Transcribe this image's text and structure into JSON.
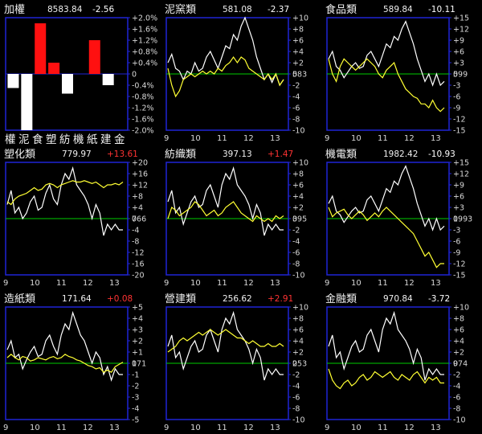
{
  "colors": {
    "background": "#000000",
    "frame": "#1f24d6",
    "axis_text": "#d8d8d8",
    "title_text": "#f0f0f0",
    "index_line": "#ffffff",
    "sector_line": "#ffff33",
    "reference_line": "#00cc00",
    "bar_up": "#ff1010",
    "bar_down": "#ffffff",
    "change_up": "#ff3333",
    "change_down": "#ffffff"
  },
  "chart_data": [
    {
      "type": "bar",
      "name": "加權",
      "title": "加權",
      "value": "8583.84",
      "change": "-2.56",
      "categories": [
        "權",
        "泥",
        "食",
        "塑",
        "紡",
        "機",
        "紙",
        "建",
        "金"
      ],
      "values": [
        -0.5,
        -2.0,
        1.8,
        0.4,
        -0.7,
        0.0,
        1.2,
        -0.4,
        0.0
      ],
      "ylim": [
        -2.0,
        2.0
      ],
      "y_ticks": [
        "+2.0%",
        "+1.6%",
        "+1.2%",
        "+0.8%",
        "+0.4%",
        "0",
        "-0.4%",
        "-0.8%",
        "-1.2%",
        "-1.6%",
        "-2.0%"
      ]
    },
    {
      "type": "line",
      "title": "泥窯類",
      "value": "581.08",
      "change": "-2.37",
      "ref_label": "583",
      "ylim": [
        -10,
        10
      ],
      "y_ticks": [
        "+10",
        "+8",
        "+6",
        "+4",
        "+2",
        "0",
        "-2",
        "-4",
        "-6",
        "-8",
        "-10"
      ],
      "x_ticks": [
        "9",
        "10",
        "11",
        "12",
        "13"
      ],
      "series": [
        {
          "values": [
            2.0,
            3.5,
            1.0,
            0.5,
            -1.0,
            0.5,
            0.0,
            2.0,
            0.5,
            1.0,
            3.0,
            4.0,
            2.5,
            1.0,
            3.0,
            5.0,
            4.5,
            7.0,
            6.0,
            8.5,
            10.0,
            8.0,
            6.0,
            3.0,
            1.0,
            -1.0,
            0.0,
            -1.5,
            0.0,
            -2.0,
            -1.0
          ]
        },
        {
          "values": [
            1.0,
            -2.0,
            -4.0,
            -3.0,
            -1.0,
            -0.5,
            0.0,
            -0.5,
            0.0,
            0.5,
            0.0,
            0.5,
            0.0,
            1.0,
            0.5,
            1.5,
            2.0,
            3.0,
            2.0,
            3.0,
            2.5,
            1.0,
            0.5,
            0.0,
            -0.5,
            -1.0,
            0.0,
            -1.0,
            0.0,
            -2.0,
            -1.0
          ]
        }
      ]
    },
    {
      "type": "line",
      "title": "食品類",
      "value": "589.84",
      "change": "-10.11",
      "ref_label": "599",
      "ylim": [
        -15,
        15
      ],
      "y_ticks": [
        "+15",
        "+12",
        "+9",
        "+6",
        "+3",
        "0",
        "-3",
        "-6",
        "-9",
        "-12",
        "-15"
      ],
      "x_ticks": [
        "9",
        "10",
        "11",
        "12",
        "13"
      ],
      "series": [
        {
          "values": [
            4.0,
            6.0,
            2.0,
            1.0,
            -1.0,
            0.5,
            2.0,
            3.0,
            1.5,
            2.0,
            5.0,
            6.0,
            4.0,
            2.0,
            5.0,
            8.0,
            7.0,
            10.0,
            9.0,
            12.0,
            14.0,
            11.0,
            8.0,
            4.0,
            1.0,
            -2.0,
            0.0,
            -3.0,
            0.0,
            -3.0,
            -2.0
          ]
        },
        {
          "values": [
            4.0,
            0.0,
            -2.0,
            2.0,
            4.0,
            3.0,
            2.0,
            1.0,
            2.0,
            3.0,
            4.0,
            3.0,
            2.0,
            0.0,
            -1.0,
            1.0,
            2.0,
            3.0,
            0.0,
            -2.0,
            -4.0,
            -5.0,
            -6.0,
            -6.5,
            -8.0,
            -8.0,
            -9.0,
            -7.0,
            -9.0,
            -10.0,
            -9.0
          ]
        }
      ]
    },
    {
      "type": "line",
      "title": "塑化類",
      "value": "779.97",
      "change": "+13.61",
      "ref_label": "766",
      "ylim": [
        -20,
        20
      ],
      "y_ticks": [
        "+20",
        "+16",
        "+12",
        "+8",
        "+4",
        "0",
        "-4",
        "-8",
        "-12",
        "-16",
        "-20"
      ],
      "x_ticks": [
        "9",
        "10",
        "11",
        "12",
        "13"
      ],
      "series": [
        {
          "values": [
            5.0,
            10.0,
            2.0,
            4.0,
            0.0,
            2.0,
            6.0,
            8.0,
            3.0,
            4.0,
            9.0,
            12.0,
            7.0,
            5.0,
            12.0,
            16.0,
            14.0,
            18.0,
            12.0,
            10.0,
            8.0,
            5.0,
            0.0,
            5.0,
            2.0,
            -6.0,
            -2.0,
            -4.0,
            -2.0,
            -4.0,
            -4.0
          ]
        },
        {
          "values": [
            6.0,
            5.0,
            7.0,
            8.0,
            8.5,
            9.0,
            10.0,
            11.0,
            10.0,
            10.5,
            12.0,
            12.5,
            12.0,
            11.0,
            12.0,
            12.5,
            13.0,
            13.5,
            13.0,
            13.0,
            13.5,
            13.0,
            12.5,
            13.0,
            12.0,
            11.0,
            12.0,
            12.0,
            12.5,
            12.0,
            13.0
          ]
        }
      ]
    },
    {
      "type": "line",
      "title": "紡織類",
      "value": "397.13",
      "change": "+1.47",
      "ref_label": "395",
      "ylim": [
        -10,
        10
      ],
      "y_ticks": [
        "+10",
        "+8",
        "+6",
        "+4",
        "+2",
        "0",
        "-2",
        "-4",
        "-6",
        "-8",
        "-10"
      ],
      "x_ticks": [
        "9",
        "10",
        "11",
        "12",
        "13"
      ],
      "series": [
        {
          "values": [
            3.0,
            5.0,
            1.0,
            2.0,
            -1.0,
            1.0,
            3.0,
            4.0,
            2.0,
            2.5,
            5.0,
            6.0,
            4.0,
            2.0,
            6.0,
            8.0,
            7.0,
            9.0,
            6.0,
            5.0,
            4.0,
            2.5,
            0.0,
            2.5,
            1.0,
            -3.0,
            -1.0,
            -2.0,
            -1.0,
            -2.0,
            -2.0
          ]
        },
        {
          "values": [
            0.0,
            2.0,
            1.5,
            0.5,
            1.0,
            1.5,
            2.0,
            3.0,
            2.5,
            1.5,
            0.5,
            1.0,
            1.5,
            0.5,
            1.0,
            2.0,
            2.5,
            3.0,
            2.0,
            1.0,
            0.5,
            0.0,
            -0.5,
            0.5,
            0.0,
            -0.5,
            0.0,
            -0.5,
            0.5,
            0.0,
            0.5
          ]
        }
      ]
    },
    {
      "type": "line",
      "title": "機電類",
      "value": "1982.42",
      "change": "-10.93",
      "ref_label": "1993",
      "ylim": [
        -15,
        15
      ],
      "y_ticks": [
        "+15",
        "+12",
        "+9",
        "+6",
        "+3",
        "0",
        "-3",
        "-6",
        "-9",
        "-12",
        "-15"
      ],
      "x_ticks": [
        "9",
        "10",
        "11",
        "12",
        "13"
      ],
      "series": [
        {
          "values": [
            4.0,
            6.0,
            2.0,
            1.0,
            -1.0,
            0.5,
            2.0,
            3.0,
            1.5,
            2.0,
            5.0,
            6.0,
            4.0,
            2.0,
            5.0,
            8.0,
            7.0,
            10.0,
            9.0,
            12.0,
            14.0,
            11.0,
            8.0,
            4.0,
            1.0,
            -2.0,
            0.0,
            -3.0,
            0.0,
            -3.0,
            -2.0
          ]
        },
        {
          "values": [
            3.0,
            0.5,
            1.5,
            2.0,
            2.5,
            1.0,
            0.0,
            1.0,
            2.0,
            1.0,
            -0.5,
            0.5,
            1.5,
            0.5,
            2.0,
            3.0,
            2.0,
            1.0,
            0.0,
            -1.0,
            -2.0,
            -3.0,
            -4.0,
            -6.0,
            -8.0,
            -10.0,
            -9.0,
            -11.0,
            -13.0,
            -12.0,
            -12.0
          ]
        }
      ]
    },
    {
      "type": "line",
      "title": "造紙類",
      "value": "171.64",
      "change": "+0.08",
      "ref_label": "171",
      "ylim": [
        -5,
        5
      ],
      "y_ticks": [
        "+5",
        "+4",
        "+3",
        "+2",
        "+1",
        "0",
        "-1",
        "-2",
        "-3",
        "-4",
        "-5"
      ],
      "x_ticks": [
        "9",
        "10",
        "11",
        "12",
        "13"
      ],
      "series": [
        {
          "values": [
            1.2,
            2.0,
            0.5,
            0.8,
            -0.5,
            0.3,
            1.0,
            1.5,
            0.6,
            0.8,
            2.0,
            2.5,
            1.5,
            0.8,
            2.5,
            3.5,
            3.0,
            4.5,
            3.5,
            2.5,
            2.0,
            1.0,
            0.0,
            1.0,
            0.5,
            -1.0,
            -0.3,
            -1.5,
            -0.5,
            -1.0,
            -1.0
          ]
        },
        {
          "values": [
            0.5,
            0.8,
            0.5,
            0.3,
            0.6,
            0.5,
            0.2,
            0.3,
            0.5,
            0.4,
            0.3,
            0.5,
            0.6,
            0.4,
            0.5,
            0.8,
            0.6,
            0.5,
            0.3,
            0.2,
            0.0,
            -0.2,
            -0.3,
            -0.5,
            -0.4,
            -0.8,
            -0.6,
            -0.8,
            -0.3,
            -0.1,
            0.1
          ]
        }
      ]
    },
    {
      "type": "line",
      "title": "營建類",
      "value": "256.62",
      "change": "+2.91",
      "ref_label": "253",
      "ylim": [
        -10,
        10
      ],
      "y_ticks": [
        "+10",
        "+8",
        "+6",
        "+4",
        "+2",
        "0",
        "-2",
        "-4",
        "-6",
        "-8",
        "-10"
      ],
      "x_ticks": [
        "9",
        "10",
        "11",
        "12",
        "13"
      ],
      "series": [
        {
          "values": [
            3.0,
            5.0,
            1.0,
            2.0,
            -1.0,
            1.0,
            3.0,
            4.0,
            2.0,
            2.5,
            5.0,
            6.0,
            4.0,
            2.0,
            6.0,
            8.0,
            7.0,
            9.0,
            6.0,
            5.0,
            4.0,
            2.5,
            0.0,
            2.5,
            1.0,
            -3.0,
            -1.0,
            -2.0,
            -1.0,
            -2.0,
            -2.0
          ]
        },
        {
          "values": [
            2.0,
            2.5,
            3.0,
            4.0,
            4.5,
            4.0,
            4.5,
            5.0,
            5.5,
            5.0,
            5.5,
            6.0,
            5.5,
            5.0,
            5.5,
            6.0,
            5.5,
            5.0,
            4.5,
            4.5,
            4.0,
            3.5,
            4.0,
            3.5,
            3.0,
            3.0,
            3.5,
            3.0,
            3.0,
            3.5,
            3.0
          ]
        }
      ]
    },
    {
      "type": "line",
      "title": "金融類",
      "value": "970.84",
      "change": "-3.72",
      "ref_label": "974",
      "ylim": [
        -10,
        10
      ],
      "y_ticks": [
        "+10",
        "+8",
        "+6",
        "+4",
        "+2",
        "0",
        "-2",
        "-4",
        "-6",
        "-8",
        "-10"
      ],
      "x_ticks": [
        "9",
        "10",
        "11",
        "12",
        "13"
      ],
      "series": [
        {
          "values": [
            3.0,
            5.0,
            1.0,
            2.0,
            -1.0,
            1.0,
            3.0,
            4.0,
            2.0,
            2.5,
            5.0,
            6.0,
            4.0,
            2.0,
            6.0,
            8.0,
            7.0,
            9.0,
            6.0,
            5.0,
            4.0,
            2.5,
            0.0,
            2.5,
            1.0,
            -3.0,
            -1.0,
            -2.0,
            -1.0,
            -2.0,
            -2.0
          ]
        },
        {
          "values": [
            -1.0,
            -3.0,
            -4.0,
            -4.5,
            -3.5,
            -3.0,
            -4.0,
            -3.5,
            -2.5,
            -2.0,
            -3.0,
            -2.5,
            -1.5,
            -2.0,
            -2.5,
            -2.0,
            -1.5,
            -2.5,
            -3.0,
            -2.0,
            -2.5,
            -3.0,
            -2.0,
            -1.5,
            -2.5,
            -3.5,
            -2.5,
            -3.0,
            -2.5,
            -3.5,
            -3.5
          ]
        }
      ]
    }
  ]
}
